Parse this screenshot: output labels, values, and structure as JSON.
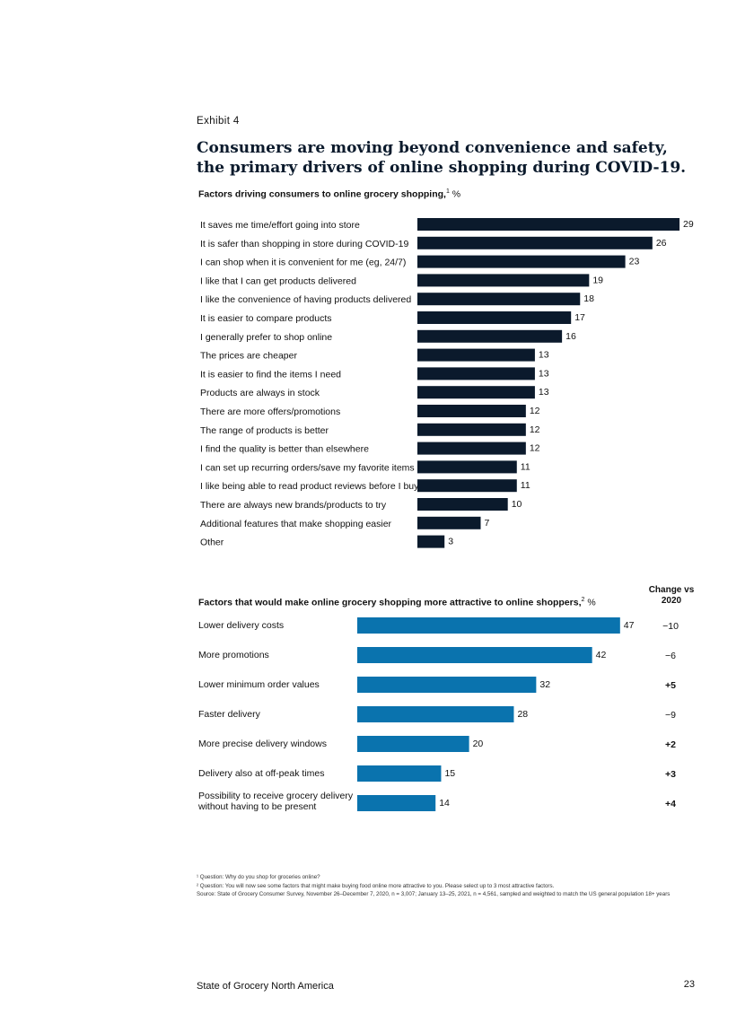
{
  "exhibit_label": "Exhibit 4",
  "title": "Consumers are moving beyond convenience and safety, the primary drivers of online shopping during COVID-19.",
  "chart_data": [
    {
      "type": "bar",
      "orientation": "horizontal",
      "title": "Factors driving consumers to online grocery shopping,",
      "title_footnote": "1",
      "title_unit": "%",
      "color": "#0b1a2c",
      "categories": [
        "It saves me time/effort going into store",
        "It is safer than shopping in store during COVID-19",
        "I can shop when it is convenient for me (eg, 24/7)",
        "I like that I can get products delivered",
        "I like the convenience of having products delivered",
        "It is easier to compare products",
        "I generally prefer to shop online",
        "The prices are cheaper",
        "It is easier to find the items I need",
        "Products are always in stock",
        "There are more offers/promotions",
        "The range of products is better",
        "I find the quality is better than elsewhere",
        "I can set up recurring orders/save my favorite items",
        "I like being able to read product reviews before I buy",
        "There are always new brands/products to try",
        "Additional features that make shopping easier",
        "Other"
      ],
      "values": [
        29,
        26,
        23,
        19,
        18,
        17,
        16,
        13,
        13,
        13,
        12,
        12,
        12,
        11,
        11,
        10,
        7,
        3
      ]
    },
    {
      "type": "bar",
      "orientation": "horizontal",
      "title": "Factors that would make online grocery shopping more attractive to online shoppers,",
      "title_footnote": "2",
      "title_unit": "%",
      "color": "#0a73ae",
      "change_header": [
        "Change vs",
        "2020"
      ],
      "categories": [
        [
          "Lower delivery costs"
        ],
        [
          "More promotions"
        ],
        [
          "Lower minimum order values"
        ],
        [
          "Faster delivery"
        ],
        [
          "More precise delivery windows"
        ],
        [
          "Delivery also at off-peak times"
        ],
        [
          "Possibility to receive grocery delivery",
          "without having to be present"
        ]
      ],
      "values": [
        47,
        42,
        32,
        28,
        20,
        15,
        14
      ],
      "change_vs_2020": [
        "−10",
        "−6",
        "+5",
        "−9",
        "+2",
        "+3",
        "+4"
      ]
    }
  ],
  "footnotes": [
    "¹ Question: Why do you shop for groceries online?",
    "² Question: You will now see some factors that might make buying food online more attractive to you. Please select up to 3 most attractive factors.",
    "Source: State of Grocery Consumer Survey, November 26–December 7, 2020, n = 3,007; January 13–25, 2021, n = 4,561, sampled and weighted to match the US general population 18+ years"
  ],
  "footer": {
    "publication": "State of Grocery North America",
    "page_number": "23"
  }
}
